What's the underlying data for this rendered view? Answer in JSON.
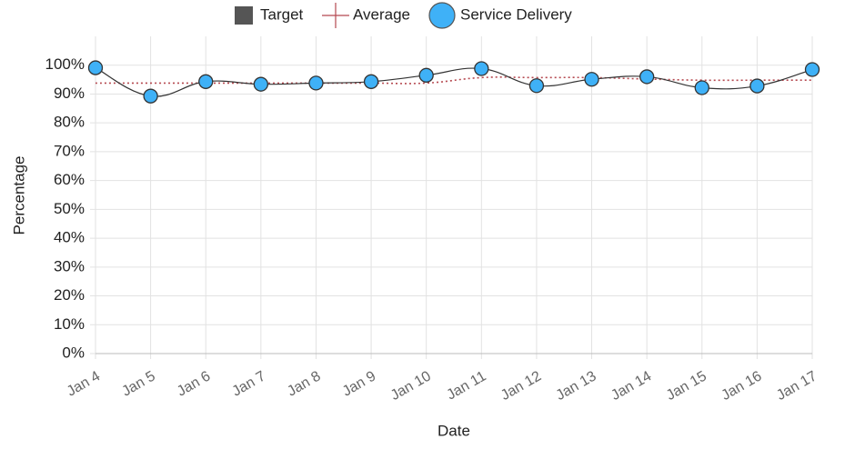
{
  "chart_data": {
    "type": "line",
    "x_label": "Date",
    "y_label": "Percentage",
    "categories": [
      "Jan 4",
      "Jan 5",
      "Jan 6",
      "Jan 7",
      "Jan 8",
      "Jan 9",
      "Jan 10",
      "Jan 11",
      "Jan 12",
      "Jan 13",
      "Jan 14",
      "Jan 15",
      "Jan 16",
      "Jan 17"
    ],
    "series": [
      {
        "name": "Target",
        "color": "#555555",
        "values": [
          null,
          null,
          null,
          null,
          null,
          null,
          null,
          null,
          null,
          null,
          null,
          null,
          null,
          null
        ]
      },
      {
        "name": "Average",
        "color": "#b5484f",
        "values": [
          93.8,
          93.8,
          93.8,
          93.8,
          93.8,
          93.8,
          93.8,
          95.7,
          95.7,
          95.7,
          95.2,
          94.8,
          94.8,
          94.8
        ]
      },
      {
        "name": "Service Delivery",
        "color": "#3fb1f7",
        "values": [
          99.1,
          89.3,
          94.3,
          93.4,
          93.8,
          94.3,
          96.5,
          98.8,
          92.9,
          95.1,
          96.0,
          92.2,
          92.8,
          98.5
        ]
      }
    ],
    "ylim": [
      0,
      110
    ],
    "yticks": [
      {
        "value": 0,
        "label": "0%"
      },
      {
        "value": 10,
        "label": "10%"
      },
      {
        "value": 20,
        "label": "20%"
      },
      {
        "value": 30,
        "label": "30%"
      },
      {
        "value": 40,
        "label": "40%"
      },
      {
        "value": 50,
        "label": "50%"
      },
      {
        "value": 60,
        "label": "60%"
      },
      {
        "value": 70,
        "label": "70%"
      },
      {
        "value": 80,
        "label": "80%"
      },
      {
        "value": 90,
        "label": "90%"
      },
      {
        "value": 100,
        "label": "100%"
      }
    ],
    "grid": true,
    "legend": "top"
  }
}
